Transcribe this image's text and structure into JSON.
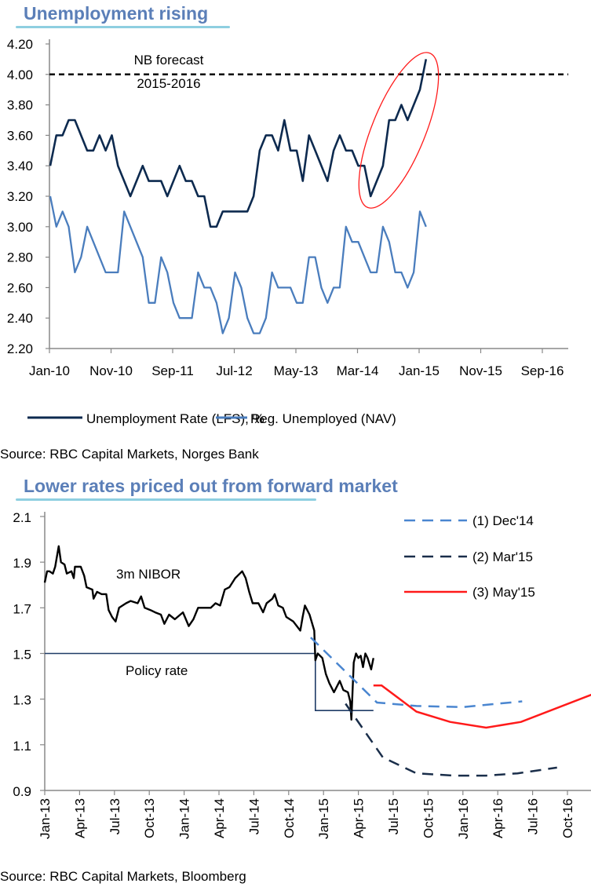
{
  "colors": {
    "lfs": "#0d2a4f",
    "nav": "#4a7dbd",
    "dec14": "#4a86d0",
    "mar15": "#1a2e4a",
    "may15": "#ff1a1a",
    "policy": "#1f3b66",
    "nibor": "#000000",
    "title": "#5b7fb8",
    "underline": "#8ecfe0",
    "ellipse": "#ff1a1a"
  },
  "chart_data": [
    {
      "type": "line",
      "title": "Unemployment rising",
      "source": "Source: RBC Capital Markets, Norges Bank",
      "ylim": [
        2.2,
        4.2
      ],
      "xlim_months_from_jan10": [
        0,
        84
      ],
      "y_ticks": [
        "4.20",
        "4.00",
        "3.80",
        "3.60",
        "3.40",
        "3.20",
        "3.00",
        "2.80",
        "2.60",
        "2.40",
        "2.20"
      ],
      "x_ticks": [
        "Jan-10",
        "Nov-10",
        "Sep-11",
        "Jul-12",
        "May-13",
        "Mar-14",
        "Jan-15",
        "Nov-15",
        "Sep-16"
      ],
      "annotation": {
        "line1": "NB forecast",
        "line2": "2015-2016",
        "value": 4.0
      },
      "series": [
        {
          "name": "Unemployment Rate (LFS), %",
          "color_key": "lfs",
          "points": [
            [
              0,
              3.4
            ],
            [
              1,
              3.6
            ],
            [
              2,
              3.6
            ],
            [
              3,
              3.7
            ],
            [
              4,
              3.7
            ],
            [
              6,
              3.5
            ],
            [
              7,
              3.5
            ],
            [
              8,
              3.6
            ],
            [
              9,
              3.5
            ],
            [
              10,
              3.6
            ],
            [
              11,
              3.4
            ],
            [
              13,
              3.2
            ],
            [
              15,
              3.4
            ],
            [
              16,
              3.3
            ],
            [
              18,
              3.3
            ],
            [
              19,
              3.2
            ],
            [
              21,
              3.4
            ],
            [
              22,
              3.3
            ],
            [
              23,
              3.3
            ],
            [
              24,
              3.2
            ],
            [
              25,
              3.2
            ],
            [
              26,
              3.0
            ],
            [
              27,
              3.0
            ],
            [
              28,
              3.1
            ],
            [
              32,
              3.1
            ],
            [
              33,
              3.2
            ],
            [
              34,
              3.5
            ],
            [
              35,
              3.6
            ],
            [
              36,
              3.6
            ],
            [
              37,
              3.5
            ],
            [
              38,
              3.7
            ],
            [
              39,
              3.5
            ],
            [
              40,
              3.5
            ],
            [
              41,
              3.3
            ],
            [
              42,
              3.6
            ],
            [
              43,
              3.5
            ],
            [
              45,
              3.3
            ],
            [
              46,
              3.5
            ],
            [
              47,
              3.6
            ],
            [
              48,
              3.5
            ],
            [
              49,
              3.5
            ],
            [
              50,
              3.4
            ],
            [
              51,
              3.4
            ],
            [
              52,
              3.2
            ],
            [
              54,
              3.4
            ],
            [
              55,
              3.7
            ],
            [
              56,
              3.7
            ],
            [
              57,
              3.8
            ],
            [
              58,
              3.7
            ],
            [
              60,
              3.9
            ],
            [
              61,
              4.1
            ]
          ]
        },
        {
          "name": "Reg. Unemployed (NAV)",
          "color_key": "nav",
          "points": [
            [
              0,
              3.2
            ],
            [
              1,
              3.0
            ],
            [
              2,
              3.1
            ],
            [
              3,
              3.0
            ],
            [
              4,
              2.7
            ],
            [
              5,
              2.8
            ],
            [
              6,
              3.0
            ],
            [
              9,
              2.7
            ],
            [
              11,
              2.7
            ],
            [
              12,
              3.1
            ],
            [
              15,
              2.8
            ],
            [
              16,
              2.5
            ],
            [
              17,
              2.5
            ],
            [
              18,
              2.8
            ],
            [
              19,
              2.7
            ],
            [
              20,
              2.5
            ],
            [
              21,
              2.4
            ],
            [
              23,
              2.4
            ],
            [
              24,
              2.7
            ],
            [
              25,
              2.6
            ],
            [
              26,
              2.6
            ],
            [
              27,
              2.5
            ],
            [
              28,
              2.3
            ],
            [
              29,
              2.4
            ],
            [
              30,
              2.7
            ],
            [
              31,
              2.6
            ],
            [
              32,
              2.4
            ],
            [
              33,
              2.3
            ],
            [
              34,
              2.3
            ],
            [
              35,
              2.4
            ],
            [
              36,
              2.7
            ],
            [
              37,
              2.6
            ],
            [
              39,
              2.6
            ],
            [
              40,
              2.5
            ],
            [
              41,
              2.5
            ],
            [
              42,
              2.8
            ],
            [
              43,
              2.8
            ],
            [
              44,
              2.6
            ],
            [
              45,
              2.5
            ],
            [
              46,
              2.6
            ],
            [
              47,
              2.6
            ],
            [
              48,
              3.0
            ],
            [
              49,
              2.9
            ],
            [
              50,
              2.9
            ],
            [
              51,
              2.8
            ],
            [
              52,
              2.7
            ],
            [
              53,
              2.7
            ],
            [
              54,
              3.0
            ],
            [
              55,
              2.9
            ],
            [
              56,
              2.7
            ],
            [
              57,
              2.7
            ],
            [
              58,
              2.6
            ],
            [
              59,
              2.7
            ],
            [
              60,
              3.1
            ],
            [
              61,
              3.0
            ]
          ]
        }
      ]
    },
    {
      "type": "line",
      "title": "Lower rates priced out from forward market",
      "source": "Source: RBC Capital Markets, Bloomberg",
      "ylim": [
        0.9,
        2.1
      ],
      "xlim_months_from_jan13": [
        0,
        47
      ],
      "y_ticks": [
        "2.1",
        "1.9",
        "1.7",
        "1.5",
        "1.3",
        "1.1",
        "0.9"
      ],
      "x_ticks": [
        "Jan-13",
        "Apr-13",
        "Jul-13",
        "Oct-13",
        "Jan-14",
        "Apr-14",
        "Jul-14",
        "Oct-14",
        "Jan-15",
        "Apr-15",
        "Jul-15",
        "Oct-15",
        "Jan-16",
        "Apr-16",
        "Jul-16",
        "Oct-16"
      ],
      "labels": {
        "nibor": "3m NIBOR",
        "policy": "Policy rate"
      },
      "nibor": [
        [
          0,
          1.81
        ],
        [
          0.2,
          1.86
        ],
        [
          0.4,
          1.86
        ],
        [
          0.7,
          1.85
        ],
        [
          0.9,
          1.88
        ],
        [
          1.2,
          1.97
        ],
        [
          1.4,
          1.9
        ],
        [
          1.7,
          1.89
        ],
        [
          1.9,
          1.85
        ],
        [
          2.3,
          1.86
        ],
        [
          2.5,
          1.83
        ],
        [
          2.6,
          1.88
        ],
        [
          3.1,
          1.88
        ],
        [
          3.4,
          1.84
        ],
        [
          3.6,
          1.79
        ],
        [
          4.1,
          1.78
        ],
        [
          4.2,
          1.74
        ],
        [
          4.5,
          1.77
        ],
        [
          4.9,
          1.76
        ],
        [
          5.3,
          1.76
        ],
        [
          5.5,
          1.69
        ],
        [
          5.8,
          1.66
        ],
        [
          6.1,
          1.64
        ],
        [
          6.4,
          1.7
        ],
        [
          7.0,
          1.72
        ],
        [
          7.4,
          1.73
        ],
        [
          8.0,
          1.72
        ],
        [
          8.3,
          1.75
        ],
        [
          8.6,
          1.7
        ],
        [
          9.1,
          1.69
        ],
        [
          9.5,
          1.68
        ],
        [
          10.0,
          1.67
        ],
        [
          10.3,
          1.63
        ],
        [
          10.7,
          1.67
        ],
        [
          11.2,
          1.65
        ],
        [
          11.9,
          1.68
        ],
        [
          12.4,
          1.62
        ],
        [
          12.8,
          1.65
        ],
        [
          13.2,
          1.7
        ],
        [
          13.7,
          1.7
        ],
        [
          14.3,
          1.7
        ],
        [
          14.7,
          1.72
        ],
        [
          15.1,
          1.71
        ],
        [
          15.5,
          1.78
        ],
        [
          15.9,
          1.79
        ],
        [
          16.4,
          1.83
        ],
        [
          16.8,
          1.85
        ],
        [
          17.0,
          1.86
        ],
        [
          17.3,
          1.83
        ],
        [
          17.6,
          1.77
        ],
        [
          17.9,
          1.72
        ],
        [
          18.4,
          1.72
        ],
        [
          18.8,
          1.68
        ],
        [
          19.1,
          1.72
        ],
        [
          19.6,
          1.74
        ],
        [
          19.8,
          1.76
        ],
        [
          20.1,
          1.71
        ],
        [
          20.5,
          1.7
        ],
        [
          20.8,
          1.66
        ],
        [
          21.4,
          1.64
        ],
        [
          21.7,
          1.62
        ],
        [
          22.0,
          1.6
        ],
        [
          22.2,
          1.66
        ],
        [
          22.4,
          1.71
        ],
        [
          22.8,
          1.67
        ],
        [
          23.2,
          1.6
        ],
        [
          23.3,
          1.47
        ],
        [
          23.5,
          1.5
        ],
        [
          23.9,
          1.48
        ],
        [
          24.2,
          1.41
        ],
        [
          24.5,
          1.37
        ],
        [
          24.9,
          1.33
        ],
        [
          25.1,
          1.35
        ],
        [
          25.4,
          1.38
        ],
        [
          25.7,
          1.34
        ],
        [
          26.1,
          1.33
        ],
        [
          26.3,
          1.29
        ],
        [
          26.4,
          1.21
        ],
        [
          26.6,
          1.46
        ],
        [
          26.8,
          1.5
        ],
        [
          27.0,
          1.48
        ],
        [
          27.2,
          1.49
        ],
        [
          27.4,
          1.44
        ],
        [
          27.6,
          1.5
        ],
        [
          27.8,
          1.48
        ],
        [
          28.1,
          1.43
        ],
        [
          28.3,
          1.48
        ]
      ],
      "policy_rate": [
        [
          0,
          1.5
        ],
        [
          23.3,
          1.5
        ],
        [
          23.3,
          1.25
        ],
        [
          28.3,
          1.25
        ]
      ],
      "series": [
        {
          "name": "(1) Dec'14",
          "color_key": "dec14",
          "dash": true,
          "points": [
            [
              22.9,
              1.57
            ],
            [
              28.6,
              1.285
            ],
            [
              32,
              1.27
            ],
            [
              36,
              1.265
            ],
            [
              41.1,
              1.29
            ]
          ]
        },
        {
          "name": "(2) Mar'15",
          "color_key": "mar15",
          "dash": true,
          "points": [
            [
              25.9,
              1.28
            ],
            [
              29.1,
              1.045
            ],
            [
              32,
              0.975
            ],
            [
              35.3,
              0.965
            ],
            [
              38,
              0.965
            ],
            [
              40.7,
              0.975
            ],
            [
              44.1,
              1.0
            ]
          ]
        },
        {
          "name": "(3) May'15",
          "color_key": "may15",
          "dash": false,
          "points": [
            [
              28.3,
              1.36
            ],
            [
              29,
              1.36
            ],
            [
              32,
              1.245
            ],
            [
              34.9,
              1.2
            ],
            [
              38,
              1.175
            ],
            [
              41,
              1.2
            ],
            [
              47.1,
              1.32
            ]
          ]
        }
      ]
    }
  ]
}
